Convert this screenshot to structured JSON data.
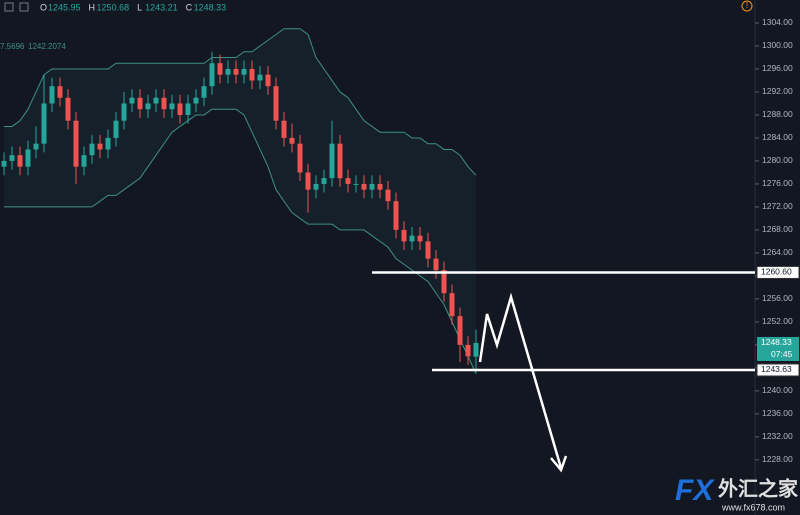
{
  "chart_data": {
    "type": "candlestick",
    "ohlc_labels": [
      "O",
      "H",
      "L",
      "C"
    ],
    "indicator_values": [
      7.5696,
      1242.2074
    ],
    "countdown": "07:45",
    "watermark": {
      "logo": "FX",
      "name": "外汇之家",
      "url": "www.fx678.com"
    },
    "up_color": "#26a69a",
    "down_color": "#ef5350",
    "band_color": "#3d8f88",
    "ylim": [
      1218.4,
      1308
    ],
    "yticks": [
      {
        "value": 1228,
        "label": "1228.00"
      },
      {
        "value": 1232,
        "label": "1232.00"
      },
      {
        "value": 1236,
        "label": "1236.00"
      },
      {
        "value": 1240,
        "label": "1240.00"
      },
      {
        "value": 1244,
        "label": "1244.00"
      },
      {
        "value": 1248,
        "label": "1248.00"
      },
      {
        "value": 1252,
        "label": "1252.00"
      },
      {
        "value": 1256,
        "label": "1256.00"
      },
      {
        "value": 1260,
        "label": "1260.00"
      },
      {
        "value": 1264,
        "label": "1264.00"
      },
      {
        "value": 1268,
        "label": "1268.00"
      },
      {
        "value": 1272,
        "label": "1272.00"
      },
      {
        "value": 1276,
        "label": "1276.00"
      },
      {
        "value": 1280,
        "label": "1280.00"
      },
      {
        "value": 1284,
        "label": "1284.00"
      },
      {
        "value": 1288,
        "label": "1288.00"
      },
      {
        "value": 1292,
        "label": "1292.00"
      },
      {
        "value": 1296,
        "label": "1296.00"
      },
      {
        "value": 1300,
        "label": "1300.00"
      },
      {
        "value": 1304,
        "label": "1304.00"
      }
    ],
    "levels": [
      {
        "value": 1260.6,
        "label": "1260.60"
      },
      {
        "value": 1243.63,
        "label": "1243.63"
      }
    ],
    "candles": {
      "open": [
        1279,
        1280,
        1281,
        1279,
        1282,
        1283,
        1290,
        1293,
        1291,
        1287,
        1279,
        1281,
        1283,
        1282,
        1284,
        1287,
        1290,
        1291,
        1289,
        1290,
        1291,
        1289,
        1290,
        1288,
        1290,
        1291,
        1293,
        1297,
        1295,
        1296,
        1295,
        1296,
        1294,
        1295,
        1293,
        1287,
        1284,
        1283,
        1278,
        1275,
        1276,
        1277,
        1283,
        1277,
        1276,
        1276,
        1275,
        1276,
        1275,
        1273,
        1268,
        1266,
        1267,
        1266,
        1263,
        1261,
        1257,
        1253,
        1248,
        1245.95
      ],
      "high": [
        1281.5,
        1282.5,
        1282.5,
        1283.5,
        1286,
        1295,
        1294.5,
        1294.5,
        1292.5,
        1288.5,
        1282.5,
        1284.5,
        1284.5,
        1285.5,
        1288.5,
        1292,
        1292.5,
        1292.5,
        1291.5,
        1292.5,
        1292.5,
        1291.5,
        1291.5,
        1291.5,
        1292.5,
        1294.5,
        1299,
        1298.5,
        1297.5,
        1297.5,
        1297.5,
        1297.5,
        1296.5,
        1296.5,
        1294.5,
        1288.5,
        1286.5,
        1284.5,
        1279.5,
        1277.5,
        1278.5,
        1287,
        1284.5,
        1278.5,
        1277.5,
        1277.5,
        1277.5,
        1277.5,
        1276.5,
        1274.5,
        1269.5,
        1268.5,
        1268.5,
        1267.5,
        1264.5,
        1262.5,
        1258.5,
        1254.5,
        1249.5,
        1250.68
      ],
      "low": [
        1277.5,
        1278.5,
        1277.5,
        1277.5,
        1280.5,
        1281.5,
        1288.5,
        1289.5,
        1285.5,
        1276,
        1277.5,
        1279.5,
        1280.5,
        1280.5,
        1282.5,
        1285.5,
        1288.5,
        1287.5,
        1287.5,
        1288.5,
        1287.5,
        1287.5,
        1286.5,
        1286.5,
        1288.5,
        1289.5,
        1291.5,
        1293.5,
        1293.5,
        1293.5,
        1293.5,
        1292.5,
        1292.5,
        1291.5,
        1285.5,
        1282.5,
        1281.5,
        1276.5,
        1271,
        1273.5,
        1274.5,
        1275.5,
        1275.5,
        1274.5,
        1274.5,
        1273.5,
        1273.5,
        1273.5,
        1271.5,
        1266.5,
        1264.5,
        1264.5,
        1264.5,
        1261.5,
        1259.5,
        1255.5,
        1251.5,
        1245,
        1244.5,
        1243.21
      ],
      "close": [
        1280,
        1281,
        1279,
        1282,
        1283,
        1290,
        1293,
        1291,
        1287,
        1279,
        1281,
        1283,
        1282,
        1284,
        1287,
        1290,
        1291,
        1289,
        1290,
        1291,
        1289,
        1290,
        1288,
        1290,
        1291,
        1293,
        1297,
        1295,
        1296,
        1295,
        1296,
        1294,
        1295,
        1293,
        1287,
        1284,
        1283,
        1278,
        1275,
        1276,
        1277,
        1283,
        1277,
        1276,
        1276,
        1275,
        1276,
        1275,
        1273,
        1268,
        1266,
        1267,
        1266,
        1263,
        1261,
        1257,
        1253,
        1248,
        1246,
        1248.33
      ]
    },
    "bands": {
      "upper": [
        1286,
        1286,
        1287,
        1289,
        1292,
        1295,
        1296,
        1296,
        1296,
        1296,
        1296,
        1296,
        1296,
        1296,
        1297,
        1297,
        1297,
        1297,
        1297,
        1297,
        1297,
        1297,
        1297,
        1297,
        1297,
        1297,
        1298,
        1298,
        1298,
        1298,
        1299,
        1299,
        1300,
        1301,
        1302,
        1303,
        1303,
        1303,
        1302,
        1298,
        1296,
        1294,
        1292,
        1291,
        1289,
        1287,
        1286,
        1285,
        1285,
        1285,
        1285,
        1284,
        1284,
        1283,
        1283,
        1282,
        1282,
        1281,
        1279,
        1277.5
      ],
      "lower": [
        1272,
        1272,
        1272,
        1272,
        1272,
        1272,
        1272,
        1272,
        1272,
        1272,
        1272,
        1272,
        1273,
        1274,
        1274,
        1275,
        1276,
        1277,
        1279,
        1281,
        1283,
        1285,
        1286,
        1287,
        1288,
        1288,
        1289,
        1289,
        1289,
        1289,
        1288,
        1285,
        1282,
        1279,
        1275,
        1273,
        1271,
        1270,
        1269,
        1269,
        1269,
        1269,
        1268,
        1268,
        1268,
        1268,
        1267,
        1266,
        1265,
        1263,
        1262,
        1261,
        1260,
        1259,
        1257,
        1255,
        1252,
        1249,
        1246,
        1243
      ]
    }
  }
}
